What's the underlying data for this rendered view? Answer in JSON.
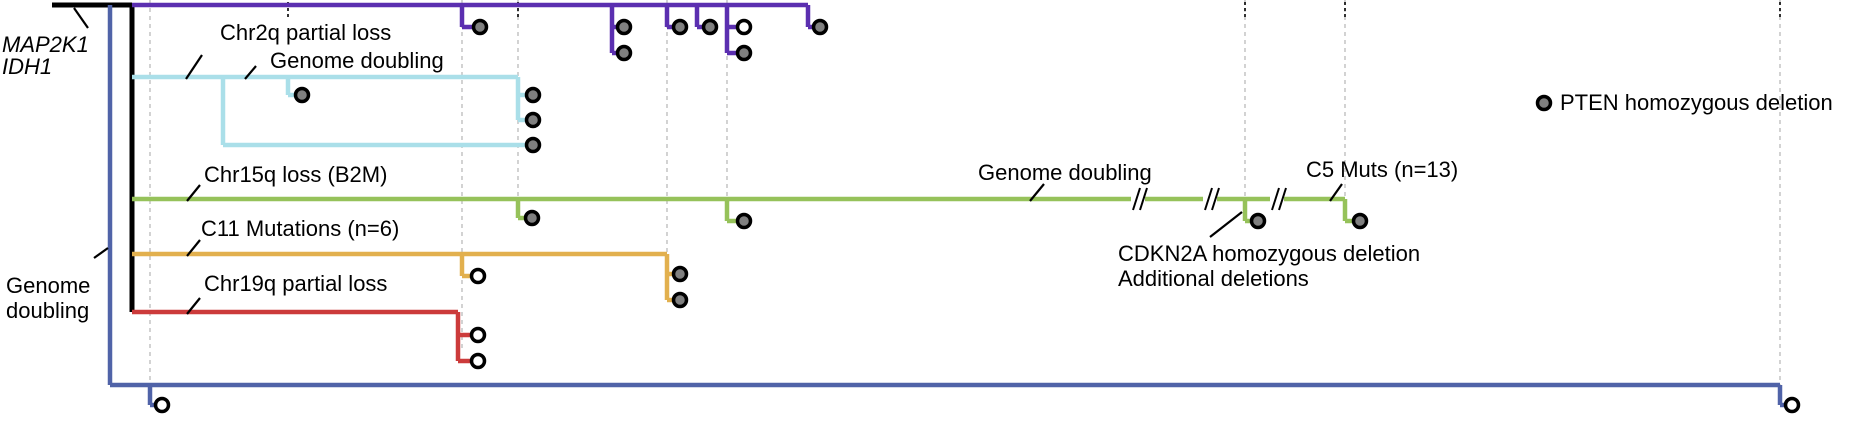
{
  "colors": {
    "trunk": "#000000",
    "blue": "#5063a8",
    "purple": "#5b2fb0",
    "cyan": "#aadfe9",
    "green": "#96c25a",
    "orange": "#e2b04e",
    "red": "#cc3b3b",
    "guide": "#bbbbbb",
    "node_deletion": "#808080",
    "node_normal": "#ffffff"
  },
  "labels": {
    "trunk_genes": [
      "MAP2K1",
      "IDH1"
    ],
    "blue_event": "Genome\ndoubling",
    "cyan_event1": "Chr2q partial loss",
    "cyan_event2": "Genome doubling",
    "green_event1": "Chr15q loss (B2M)",
    "green_event2": "Genome doubling",
    "green_event3": "C5 Muts (n=13)",
    "green_event4": "CDKN2A homozygous deletion\nAdditional deletions",
    "orange_event": "C11 Mutations (n=6)",
    "red_event": "Chr19q partial loss"
  },
  "legend": {
    "icon": "filled-node-icon",
    "text": "PTEN homozygous deletion"
  }
}
